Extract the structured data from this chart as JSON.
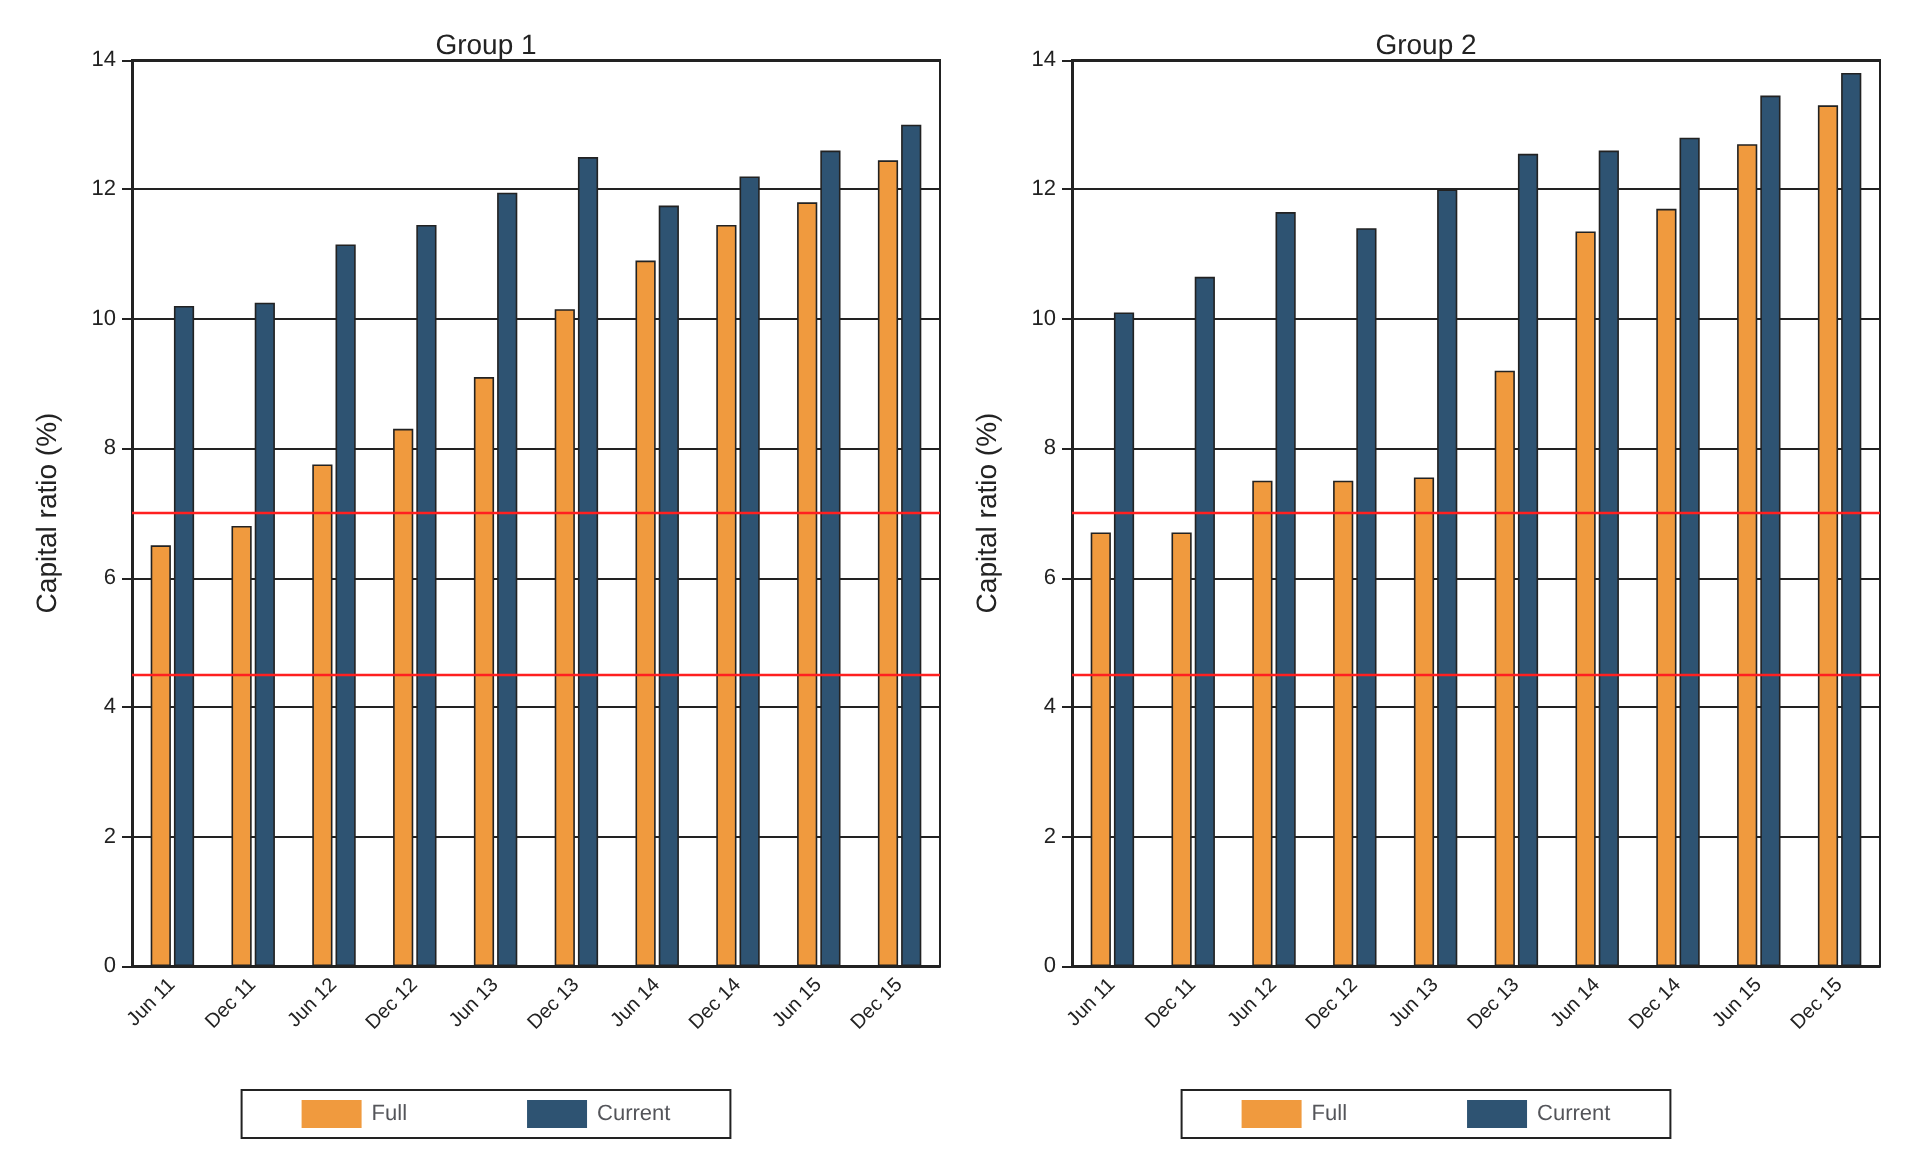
{
  "chart_data": [
    {
      "type": "bar",
      "title": "Group 1",
      "ylabel": "Capital ratio (%)",
      "categories": [
        "Jun 11",
        "Dec 11",
        "Jun 12",
        "Dec 12",
        "Jun 13",
        "Dec 13",
        "Jun 14",
        "Dec 14",
        "Jun 15",
        "Dec 15"
      ],
      "series": [
        {
          "name": "Full",
          "color": "#f09a3e",
          "values": [
            6.5,
            6.8,
            7.75,
            8.3,
            9.1,
            10.15,
            10.9,
            11.45,
            11.8,
            12.45
          ]
        },
        {
          "name": "Current",
          "color": "#2e5372",
          "values": [
            10.2,
            10.25,
            11.15,
            11.45,
            11.95,
            12.5,
            11.75,
            12.2,
            12.6,
            13.0
          ]
        }
      ],
      "ylim": [
        0,
        14
      ],
      "yticks": [
        0,
        2,
        4,
        6,
        8,
        10,
        12,
        14
      ],
      "grid": "y",
      "legend": "bottom",
      "ref_lines": [
        {
          "axis": "y",
          "value": 7,
          "color": "#ff2020"
        },
        {
          "axis": "y",
          "value": 4.5,
          "color": "#ff2020"
        }
      ]
    },
    {
      "type": "bar",
      "title": "Group 2",
      "ylabel": "Capital ratio (%)",
      "categories": [
        "Jun 11",
        "Dec 11",
        "Jun 12",
        "Dec 12",
        "Jun 13",
        "Dec 13",
        "Jun 14",
        "Dec 14",
        "Jun 15",
        "Dec 15"
      ],
      "series": [
        {
          "name": "Full",
          "color": "#f09a3e",
          "values": [
            6.7,
            6.7,
            7.5,
            7.5,
            7.55,
            9.2,
            11.35,
            11.7,
            12.7,
            13.3
          ]
        },
        {
          "name": "Current",
          "color": "#2e5372",
          "values": [
            10.1,
            10.65,
            11.65,
            11.4,
            12.0,
            12.55,
            12.6,
            12.8,
            13.45,
            13.8
          ]
        }
      ],
      "ylim": [
        0,
        14
      ],
      "yticks": [
        0,
        2,
        4,
        6,
        8,
        10,
        12,
        14
      ],
      "grid": "y",
      "legend": "bottom",
      "ref_lines": [
        {
          "axis": "y",
          "value": 7,
          "color": "#ff2020"
        },
        {
          "axis": "y",
          "value": 4.5,
          "color": "#ff2020"
        }
      ]
    }
  ]
}
